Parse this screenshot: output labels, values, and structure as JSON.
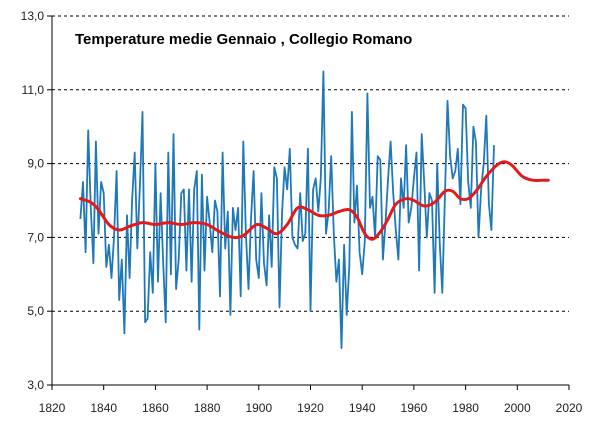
{
  "chart_data": {
    "type": "line",
    "title": "Temperature medie Gennaio , Collegio  Romano",
    "xlabel": "",
    "ylabel": "",
    "xlim": [
      1820,
      2020
    ],
    "ylim": [
      3.0,
      13.0
    ],
    "x_ticks": [
      1820,
      1840,
      1860,
      1880,
      1900,
      1920,
      1940,
      1960,
      1980,
      2000,
      2020
    ],
    "y_ticks": [
      "3,0",
      "5,0",
      "7,0",
      "9,0",
      "11,0",
      "13,0"
    ],
    "y_tick_values": [
      3,
      5,
      7,
      9,
      11,
      13
    ],
    "grid": "horizontal dashed",
    "colors": {
      "annual": "#1f78b8",
      "smoothed": "#e31a1c",
      "grid": "#000000"
    },
    "series": [
      {
        "role": "annual",
        "x_start": 1831,
        "x_step": 1,
        "values": [
          7.5,
          8.5,
          6.6,
          9.9,
          7.8,
          6.3,
          9.6,
          7.1,
          8.5,
          8.2,
          6.2,
          6.8,
          5.9,
          7.0,
          8.8,
          5.3,
          6.4,
          4.4,
          7.6,
          5.9,
          8.0,
          9.3,
          6.7,
          8.4,
          10.4,
          4.7,
          4.8,
          6.6,
          5.5,
          9.0,
          5.8,
          8.2,
          6.3,
          4.7,
          9.3,
          6.0,
          9.8,
          5.6,
          6.4,
          8.2,
          8.3,
          6.1,
          8.3,
          5.8,
          8.3,
          8.8,
          4.5,
          8.7,
          6.1,
          8.1,
          7.4,
          6.6,
          8.0,
          7.7,
          5.4,
          9.3,
          6.7,
          7.7,
          4.9,
          7.8,
          7.2,
          7.8,
          5.4,
          9.6,
          7.1,
          5.6,
          7.5,
          8.8,
          6.4,
          5.9,
          8.2,
          6.3,
          5.7,
          7.6,
          6.2,
          8.9,
          8.6,
          5.1,
          7.7,
          8.9,
          8.3,
          9.4,
          7.0,
          6.8,
          6.7,
          8.2,
          6.9,
          7.1,
          9.4,
          5.0,
          8.3,
          8.6,
          7.7,
          8.6,
          11.5,
          7.1,
          7.7,
          9.2,
          7.1,
          5.8,
          6.4,
          4.0,
          6.8,
          4.9,
          6.2,
          10.4,
          7.4,
          8.4,
          6.6,
          6.0,
          6.9,
          10.9,
          7.8,
          8.1,
          7.0,
          9.2,
          9.1,
          6.4,
          7.4,
          8.6,
          9.6,
          8.2,
          7.2,
          6.4,
          8.6,
          7.8,
          9.5,
          7.4,
          7.8,
          8.6,
          9.3,
          6.1,
          9.8,
          8.5,
          7.0,
          8.2,
          8.0,
          5.5,
          9.0,
          6.8,
          5.5,
          8.1,
          10.7,
          9.2,
          8.6,
          8.8,
          9.4,
          7.9,
          10.6,
          10.5,
          8.5,
          7.8,
          10.0,
          9.6,
          7.0,
          8.3,
          9.0,
          10.3,
          7.9,
          7.2,
          9.5
        ]
      },
      {
        "role": "smoothed",
        "points": [
          [
            1831,
            8.05
          ],
          [
            1835,
            7.95
          ],
          [
            1838,
            7.75
          ],
          [
            1842,
            7.35
          ],
          [
            1846,
            7.2
          ],
          [
            1850,
            7.3
          ],
          [
            1855,
            7.4
          ],
          [
            1860,
            7.35
          ],
          [
            1865,
            7.4
          ],
          [
            1870,
            7.35
          ],
          [
            1875,
            7.4
          ],
          [
            1880,
            7.35
          ],
          [
            1885,
            7.15
          ],
          [
            1890,
            7.0
          ],
          [
            1894,
            7.05
          ],
          [
            1898,
            7.3
          ],
          [
            1900,
            7.35
          ],
          [
            1903,
            7.25
          ],
          [
            1907,
            7.1
          ],
          [
            1911,
            7.35
          ],
          [
            1915,
            7.8
          ],
          [
            1919,
            7.75
          ],
          [
            1923,
            7.6
          ],
          [
            1927,
            7.6
          ],
          [
            1931,
            7.7
          ],
          [
            1935,
            7.75
          ],
          [
            1938,
            7.55
          ],
          [
            1941,
            7.1
          ],
          [
            1944,
            6.95
          ],
          [
            1947,
            7.15
          ],
          [
            1950,
            7.5
          ],
          [
            1953,
            7.9
          ],
          [
            1957,
            8.05
          ],
          [
            1960,
            8.0
          ],
          [
            1964,
            7.85
          ],
          [
            1968,
            7.95
          ],
          [
            1972,
            8.25
          ],
          [
            1975,
            8.25
          ],
          [
            1978,
            8.05
          ],
          [
            1981,
            8.05
          ],
          [
            1984,
            8.25
          ],
          [
            1988,
            8.65
          ],
          [
            1992,
            8.95
          ],
          [
            1995,
            9.05
          ],
          [
            1998,
            8.95
          ],
          [
            2002,
            8.65
          ],
          [
            2006,
            8.55
          ],
          [
            2010,
            8.55
          ],
          [
            2012,
            8.55
          ]
        ]
      }
    ]
  }
}
